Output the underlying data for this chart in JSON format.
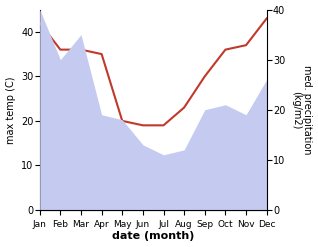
{
  "months": [
    "Jan",
    "Feb",
    "Mar",
    "Apr",
    "May",
    "Jun",
    "Jul",
    "Aug",
    "Sep",
    "Oct",
    "Nov",
    "Dec"
  ],
  "temperature": [
    42,
    36,
    36,
    35,
    20,
    19,
    19,
    23,
    30,
    36,
    37,
    43
  ],
  "precipitation": [
    40,
    30,
    35,
    19,
    18,
    13,
    11,
    12,
    20,
    21,
    19,
    26
  ],
  "temp_color": "#c0392b",
  "precip_color_fill": "#c5caf0",
  "ylabel_left": "max temp (C)",
  "ylabel_right": "med. precipitation\n(kg/m2)",
  "xlabel": "date (month)",
  "ylim_left": [
    0,
    45
  ],
  "ylim_right": [
    0,
    40
  ],
  "yticks_left": [
    0,
    10,
    20,
    30,
    40
  ],
  "yticks_right": [
    0,
    10,
    20,
    30,
    40
  ],
  "bg_color": "#ffffff"
}
